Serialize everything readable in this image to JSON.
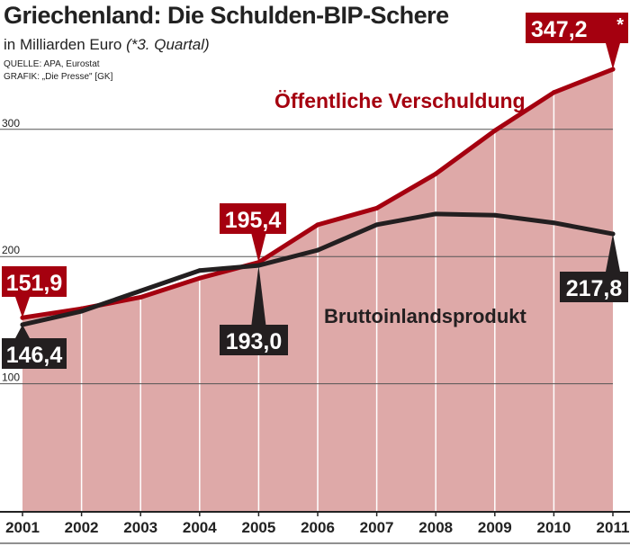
{
  "chart_data": {
    "type": "area",
    "title": "Griechenland: Die Schulden-BIP-Schere",
    "subtitle": "in Milliarden Euro",
    "subtitle_note": "(*3. Quartal)",
    "source": "QUELLE: APA, Eurostat",
    "credit": "GRAFIK: „Die Presse\" [GK]",
    "categories": [
      "2001",
      "2002",
      "2003",
      "2004",
      "2005",
      "2006",
      "2007",
      "2008",
      "2009",
      "2010",
      "2011"
    ],
    "ylim": [
      0,
      350
    ],
    "yticks": [
      100,
      200,
      300
    ],
    "grid": true,
    "series": [
      {
        "name": "Öffentliche Verschuldung",
        "color": "#a5000f",
        "fill": "#dea9a8",
        "values": [
          151.9,
          159,
          168,
          183,
          195.4,
          225,
          238,
          265,
          299,
          329,
          347.2
        ]
      },
      {
        "name": "Bruttoinlandsprodukt",
        "color": "#231f20",
        "values": [
          146.4,
          157,
          173,
          189,
          193.0,
          205,
          225,
          233.5,
          232.5,
          226.5,
          217.8
        ]
      }
    ],
    "annotations": [
      {
        "series": 0,
        "index": 0,
        "text": "151,9"
      },
      {
        "series": 0,
        "index": 4,
        "text": "195,4"
      },
      {
        "series": 0,
        "index": 10,
        "text": "347,2",
        "suffix": "*"
      },
      {
        "series": 1,
        "index": 0,
        "text": "146,4"
      },
      {
        "series": 1,
        "index": 4,
        "text": "193,0"
      },
      {
        "series": 1,
        "index": 10,
        "text": "217,8"
      }
    ]
  }
}
